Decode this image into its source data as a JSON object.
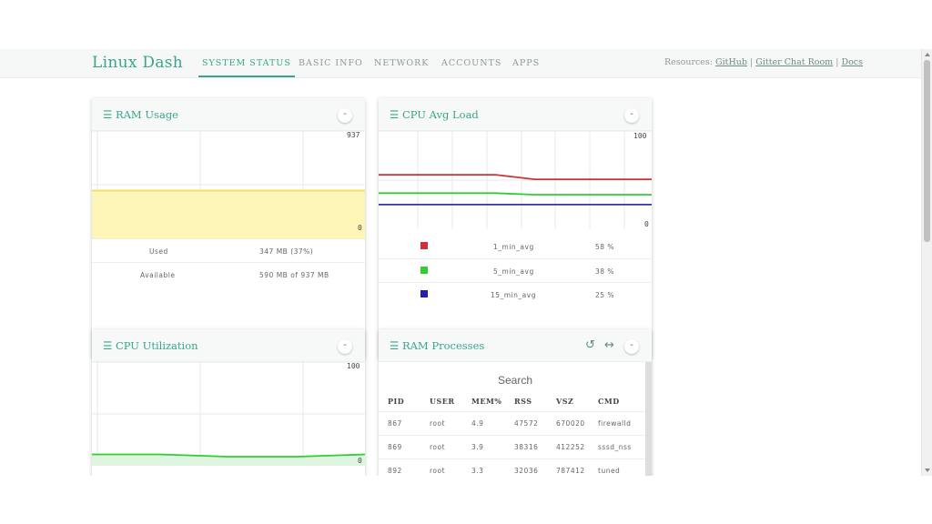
{
  "app": {
    "brand": "Linux Dash"
  },
  "nav": {
    "tabs": [
      {
        "label": "SYSTEM STATUS",
        "active": true
      },
      {
        "label": "BASIC INFO"
      },
      {
        "label": "NETWORK"
      },
      {
        "label": "ACCOUNTS"
      },
      {
        "label": "APPS"
      }
    ],
    "resources_label": "Resources:",
    "links": [
      "GitHub",
      "Gitter Chat Room",
      "Docs"
    ],
    "separator": "|"
  },
  "colors": {
    "accent": "#3aa58c",
    "ram_fill": "#fdf6b8",
    "ram_line": "#f0df6a",
    "red": "#d03232",
    "green": "#33cc33",
    "blue": "#3333aa"
  },
  "ram_usage": {
    "title": "RAM Usage",
    "menu_icon": "menu-icon",
    "chart": {
      "max": "937",
      "min": "0",
      "level_fraction": 0.37
    },
    "rows": [
      {
        "label": "Used",
        "value": "347 MB (37%)"
      },
      {
        "label": "Available",
        "value": "590 MB of 937 MB"
      }
    ]
  },
  "cpu_avg_load": {
    "title": "CPU Avg Load",
    "chart": {
      "max": "100",
      "min": "0"
    },
    "rows": [
      {
        "color": "#d03232",
        "label": "1_min_avg",
        "value": "58 %"
      },
      {
        "color": "#33cc33",
        "label": "5_min_avg",
        "value": "38 %"
      },
      {
        "color": "#2222aa",
        "label": "15_min_avg",
        "value": "25 %"
      }
    ]
  },
  "cpu_utilization": {
    "title": "CPU Utilization",
    "chart": {
      "max": "100",
      "min": "0"
    }
  },
  "ram_processes": {
    "title": "RAM Processes",
    "search_label": "Search",
    "columns": [
      "PID",
      "USER",
      "MEM%",
      "RSS",
      "VSZ",
      "CMD"
    ],
    "rows": [
      [
        "867",
        "root",
        "4.9",
        "47572",
        "670020",
        "firewalld"
      ],
      [
        "869",
        "root",
        "3.9",
        "38316",
        "412252",
        "sssd_nss"
      ],
      [
        "892",
        "root",
        "3.3",
        "32036",
        "787412",
        "tuned"
      ]
    ]
  },
  "chart_data": [
    {
      "type": "area",
      "title": "RAM Usage",
      "ylim": [
        0,
        937
      ],
      "series": [
        {
          "name": "Used",
          "values": [
            347,
            347,
            347,
            347,
            347
          ]
        }
      ]
    },
    {
      "type": "line",
      "title": "CPU Avg Load",
      "ylim": [
        0,
        100
      ],
      "series": [
        {
          "name": "1_min_avg",
          "values": [
            64,
            64,
            64,
            64,
            58,
            58,
            58,
            58
          ]
        },
        {
          "name": "5_min_avg",
          "values": [
            40,
            40,
            40,
            40,
            38,
            38,
            38,
            38
          ]
        },
        {
          "name": "15_min_avg",
          "values": [
            25,
            25,
            25,
            25,
            25,
            25,
            25,
            25
          ]
        }
      ]
    },
    {
      "type": "area",
      "title": "CPU Utilization",
      "ylim": [
        0,
        100
      ],
      "series": [
        {
          "values": [
            5,
            5,
            4,
            4,
            5
          ]
        }
      ]
    }
  ]
}
